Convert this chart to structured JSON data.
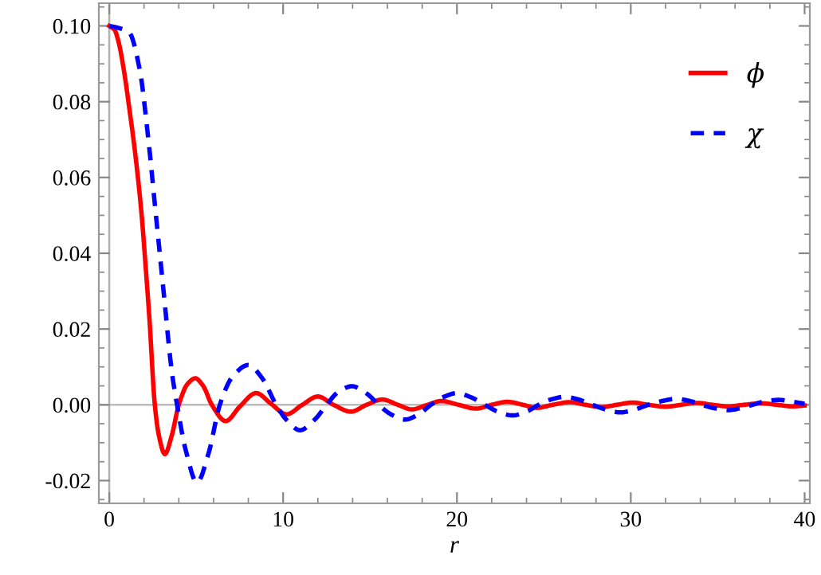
{
  "chart_data": {
    "type": "line",
    "xlabel": "r",
    "xlim": [
      -0.6,
      40.3
    ],
    "ylim": [
      -0.026,
      0.106
    ],
    "xticks": [
      0,
      10,
      20,
      30,
      40
    ],
    "yticks": [
      {
        "value": -0.02,
        "label": "-0.02"
      },
      {
        "value": 0,
        "label": "0.00"
      },
      {
        "value": 0.02,
        "label": "0.02"
      },
      {
        "value": 0.04,
        "label": "0.04"
      },
      {
        "value": 0.06,
        "label": "0.06"
      },
      {
        "value": 0.08,
        "label": "0.08"
      },
      {
        "value": 0.1,
        "label": "0.10"
      }
    ],
    "grid": false,
    "legend": "top right",
    "marker": "none",
    "ref_lines": [
      {
        "axis": "x",
        "value": 0,
        "color": "#b0b0b0"
      },
      {
        "axis": "y",
        "value": 0,
        "color": "#bcbcbc"
      }
    ],
    "series": [
      {
        "name": "ϕ",
        "color": "#ff0000",
        "line_style": "solid",
        "x": [
          0,
          0.3,
          0.55,
          0.85,
          1.14,
          1.5,
          1.85,
          2.1,
          2.31,
          2.62,
          2.85,
          3.2,
          3.6,
          4.0,
          4.5,
          4.95,
          5.4,
          5.9,
          6.7,
          7.5,
          8.45,
          9.3,
          10.2,
          11.1,
          12.0,
          12.9,
          13.9,
          14.8,
          15.7,
          16.6,
          17.4,
          18.3,
          19.1,
          20.1,
          21.1,
          22.0,
          22.9,
          23.8,
          24.6,
          25.5,
          26.5,
          27.4,
          28.3,
          29.2,
          30.1,
          31.0,
          32.0,
          32.9,
          33.8,
          34.7,
          35.6,
          36.5,
          37.5,
          38.4,
          39.3,
          40.0
        ],
        "values": [
          0.1,
          0.099,
          0.0955,
          0.088,
          0.0787,
          0.066,
          0.0507,
          0.036,
          0.0227,
          0,
          -0.008,
          -0.013,
          -0.008,
          0.0,
          0.0055,
          0.007,
          0.005,
          0.0,
          -0.0043,
          -0.0005,
          0.0031,
          0.0003,
          -0.0025,
          0.0,
          0.0022,
          0.0,
          -0.0018,
          0.0,
          0.0014,
          0.0,
          -0.0012,
          0.0,
          0.001,
          0.0,
          -0.001,
          0.0,
          0.0008,
          0.0,
          -0.0008,
          0.0,
          0.0007,
          0.0,
          -0.0006,
          0.0,
          0.0006,
          0.0,
          -0.0005,
          0.0,
          0.0005,
          0.0,
          -0.0004,
          0.0,
          0.0004,
          0.0,
          -0.0004,
          -0.0002
        ]
      },
      {
        "name": "χ",
        "color": "#0000ff",
        "line_style": "dashed",
        "x": [
          0,
          0.5,
          1.14,
          1.75,
          2.21,
          2.67,
          3.13,
          3.6,
          3.9,
          4.4,
          5.05,
          5.7,
          6.36,
          7.1,
          8.0,
          8.8,
          9.6,
          10.2,
          10.97,
          11.8,
          12.5,
          13.2,
          13.96,
          14.8,
          15.5,
          16.2,
          17.0,
          17.8,
          18.5,
          19.2,
          20.0,
          20.8,
          21.6,
          22.4,
          23.2,
          24.0,
          24.7,
          25.4,
          26.2,
          27.0,
          27.8,
          28.6,
          29.4,
          30.2,
          31.0,
          31.8,
          32.6,
          33.4,
          34.1,
          34.8,
          35.6,
          36.3,
          37.0,
          37.7,
          38.5,
          39.3,
          40.0
        ],
        "values": [
          0.1,
          0.0995,
          0.0983,
          0.0885,
          0.0717,
          0.0507,
          0.0297,
          0.0087,
          0,
          -0.012,
          -0.0205,
          -0.013,
          0,
          0.0075,
          0.0105,
          0.007,
          0,
          -0.004,
          -0.0067,
          -0.004,
          0,
          0.0035,
          0.0049,
          0.003,
          0,
          -0.0025,
          -0.0039,
          -0.0025,
          0,
          0.002,
          0.0031,
          0.002,
          0,
          -0.0019,
          -0.0028,
          -0.0018,
          0,
          0.0014,
          0.0021,
          0.0014,
          0,
          -0.0013,
          -0.002,
          -0.0013,
          0,
          0.001,
          0.0016,
          0.001,
          0,
          -0.0009,
          -0.0014,
          -0.0009,
          0,
          0.0009,
          0.0013,
          0.0008,
          0.0003
        ]
      }
    ]
  }
}
